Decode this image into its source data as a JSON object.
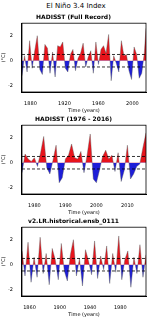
{
  "title": "El Niño 3.4 Index",
  "chart_data": [
    {
      "type": "line",
      "title": "HADISST (Full Record)",
      "x_label": "Time (years)",
      "y_label": "(°C)",
      "x": [
        1870,
        1873,
        1876,
        1879,
        1882,
        1885,
        1888,
        1891,
        1894,
        1897,
        1900,
        1903,
        1906,
        1909,
        1912,
        1915,
        1918,
        1921,
        1924,
        1927,
        1930,
        1933,
        1936,
        1939,
        1942,
        1945,
        1948,
        1951,
        1954,
        1957,
        1960,
        1963,
        1966,
        1969,
        1972,
        1975,
        1978,
        1981,
        1984,
        1987,
        1990,
        1993,
        1996,
        1999,
        2002,
        2005,
        2008,
        2011,
        2014,
        2016
      ],
      "values": [
        -1.2,
        0.4,
        -0.9,
        1.6,
        -0.6,
        0.8,
        2.0,
        -0.7,
        -1.1,
        1.3,
        1.0,
        -1.0,
        0.7,
        -1.3,
        1.2,
        1.1,
        1.5,
        -0.6,
        -0.9,
        0.5,
        0.9,
        -0.8,
        0.2,
        0.6,
        1.4,
        -0.5,
        0.3,
        0.8,
        -1.0,
        1.5,
        -0.3,
        0.9,
        1.2,
        0.6,
        2.1,
        -1.6,
        0.4,
        -0.2,
        -0.9,
        1.6,
        0.4,
        0.5,
        -0.8,
        -1.5,
        1.1,
        0.5,
        -1.4,
        -1.0,
        0.6,
        2.6
      ],
      "colors": [
        "#e8141c",
        "#1e1ed8"
      ],
      "xlim": [
        1870,
        2016
      ],
      "xticks": [
        1880,
        1920,
        1960,
        2000
      ],
      "ylim": [
        -2.5,
        3
      ],
      "yticks": [
        -2,
        0,
        2
      ],
      "hlines": [
        0.5,
        -0.5
      ],
      "grid": false
    },
    {
      "type": "line",
      "title": "HADISST (1976 - 2016)",
      "x_label": "Time (years)",
      "y_label": "(°C)",
      "x": [
        1976,
        1977,
        1978,
        1979,
        1980,
        1981,
        1982,
        1983,
        1984,
        1985,
        1986,
        1987,
        1988,
        1989,
        1990,
        1991,
        1992,
        1993,
        1994,
        1995,
        1996,
        1997,
        1998,
        1999,
        2000,
        2001,
        2002,
        2003,
        2004,
        2005,
        2006,
        2007,
        2008,
        2009,
        2010,
        2011,
        2012,
        2013,
        2014,
        2015,
        2016
      ],
      "values": [
        -0.8,
        0.7,
        0.3,
        0.1,
        0.4,
        -0.3,
        0.8,
        2.1,
        -0.4,
        -0.9,
        0.2,
        1.4,
        -1.6,
        -1.2,
        0.3,
        0.6,
        1.5,
        0.4,
        0.3,
        0.9,
        -0.8,
        0.6,
        2.3,
        -1.3,
        -1.6,
        -0.6,
        0.5,
        1.0,
        0.3,
        0.6,
        -0.7,
        0.8,
        -1.5,
        -0.6,
        1.4,
        -1.3,
        -0.9,
        -0.3,
        -0.1,
        1.2,
        2.4
      ],
      "colors": [
        "#e8141c",
        "#1e1ed8"
      ],
      "xlim": [
        1976,
        2016
      ],
      "xticks": [
        1980,
        1990,
        2000,
        2010
      ],
      "ylim": [
        -2.5,
        3
      ],
      "yticks": [
        -2,
        0,
        2
      ],
      "hlines": [
        0.5,
        -0.5
      ],
      "grid": false
    },
    {
      "type": "line",
      "title": "v2.LR.historical.ensb_0111",
      "x_label": "Time (years)",
      "y_label": "(°C)",
      "x": [
        1850,
        1854,
        1858,
        1862,
        1866,
        1870,
        1874,
        1878,
        1882,
        1886,
        1890,
        1894,
        1898,
        1902,
        1906,
        1910,
        1914,
        1918,
        1922,
        1926,
        1930,
        1934,
        1938,
        1942,
        1946,
        1950,
        1954,
        1958,
        1962,
        1966,
        1970,
        1974,
        1978,
        1982,
        1986,
        1990,
        1994,
        1998,
        2002,
        2006,
        2010,
        2014
      ],
      "values": [
        1.1,
        -0.9,
        1.8,
        -1.4,
        0.6,
        -1.0,
        2.2,
        -0.7,
        0.9,
        -1.6,
        1.3,
        0.4,
        -1.2,
        1.7,
        -0.5,
        -1.3,
        0.8,
        2.0,
        -0.9,
        0.5,
        -1.7,
        1.2,
        0.3,
        -0.8,
        1.9,
        -1.1,
        0.7,
        -0.4,
        1.5,
        -1.5,
        0.9,
        -0.6,
        2.3,
        -1.2,
        0.4,
        1.1,
        -1.8,
        0.6,
        -0.7,
        1.6,
        -1.0,
        0.8
      ],
      "colors": [
        "#e8141c",
        "#1e1ed8"
      ],
      "xlim": [
        1850,
        2014
      ],
      "xticks": [
        1860,
        1900,
        1940,
        1980
      ],
      "ylim": [
        -2.5,
        3
      ],
      "yticks": [
        -2,
        0,
        2
      ],
      "hlines": [
        0.5,
        -0.5
      ],
      "grid": false
    }
  ]
}
